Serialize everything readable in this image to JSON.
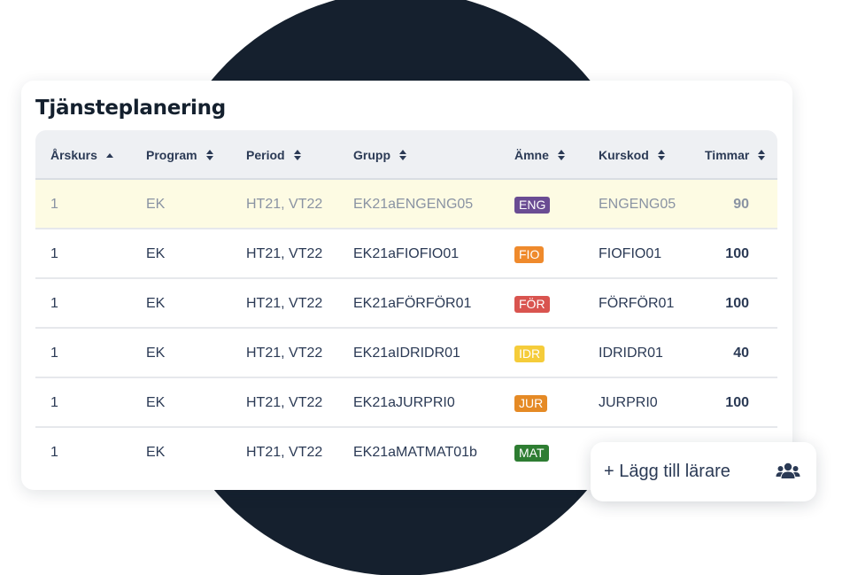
{
  "card": {
    "title": "Tjänsteplanering"
  },
  "columns": [
    {
      "label": "Årskurs",
      "sort": "asc"
    },
    {
      "label": "Program",
      "sort": "both"
    },
    {
      "label": "Period",
      "sort": "both"
    },
    {
      "label": "Grupp",
      "sort": "both"
    },
    {
      "label": "Ämne",
      "sort": "both"
    },
    {
      "label": "Kurskod",
      "sort": "both"
    },
    {
      "label": "Timmar",
      "sort": "both"
    }
  ],
  "rows": [
    {
      "arskurs": "1",
      "program": "EK",
      "period": "HT21, VT22",
      "grupp": "EK21aENGENG05",
      "amne": "ENG",
      "amne_color": "#6a4c93",
      "kurskod": "ENGENG05",
      "timmar": "90",
      "highlighted": true
    },
    {
      "arskurs": "1",
      "program": "EK",
      "period": "HT21, VT22",
      "grupp": "EK21aFIOFIO01",
      "amne": "FIO",
      "amne_color": "#ef8a2c",
      "kurskod": "FIOFIO01",
      "timmar": "100",
      "highlighted": false
    },
    {
      "arskurs": "1",
      "program": "EK",
      "period": "HT21, VT22",
      "grupp": "EK21aFÖRFÖR01",
      "amne": "FÖR",
      "amne_color": "#d9544f",
      "kurskod": "FÖRFÖR01",
      "timmar": "100",
      "highlighted": false
    },
    {
      "arskurs": "1",
      "program": "EK",
      "period": "HT21, VT22",
      "grupp": "EK21aIDRIDR01",
      "amne": "IDR",
      "amne_color": "#f5cc3a",
      "kurskod": "IDRIDR01",
      "timmar": "40",
      "highlighted": false
    },
    {
      "arskurs": "1",
      "program": "EK",
      "period": "HT21, VT22",
      "grupp": "EK21aJURPRI0",
      "amne": "JUR",
      "amne_color": "#e58a25",
      "kurskod": "JURPRI0",
      "timmar": "100",
      "highlighted": false
    },
    {
      "arskurs": "1",
      "program": "EK",
      "period": "HT21, VT22",
      "grupp": "EK21aMATMAT01b",
      "amne": "MAT",
      "amne_color": "#2e7d32",
      "kurskod": "",
      "timmar": "",
      "highlighted": false
    }
  ],
  "add_teacher": {
    "label": "+ Lägg till lärare",
    "icon": "users-icon"
  },
  "colors": {
    "circle": "#15202e",
    "highlight_row": "#fdfbe3",
    "text": "#2b3a55"
  }
}
